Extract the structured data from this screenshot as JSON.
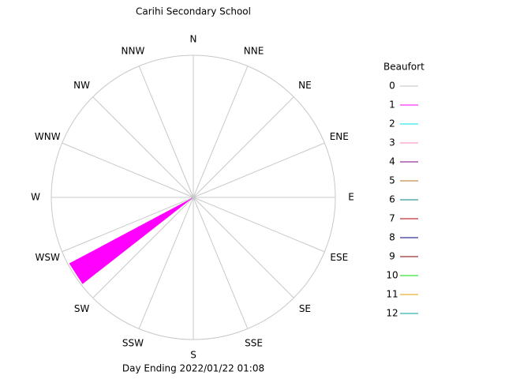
{
  "chart_data": {
    "type": "windrose",
    "title": "Carihi Secondary School",
    "footer": "Day Ending 2022/01/22 01:08",
    "directions": [
      "N",
      "NNE",
      "NE",
      "ENE",
      "E",
      "ESE",
      "SE",
      "SSE",
      "S",
      "SSW",
      "SW",
      "WSW",
      "W",
      "WNW",
      "NW",
      "NNW"
    ],
    "rlim": [
      0,
      1
    ],
    "legend_title": "Beaufort",
    "series": [
      {
        "name": "0",
        "color": "#c0c0c0",
        "directions": [],
        "values": []
      },
      {
        "name": "1",
        "color": "#ff00ff",
        "directions": [
          237
        ],
        "values": [
          0.99
        ]
      },
      {
        "name": "2",
        "color": "#00e0e0",
        "directions": [],
        "values": []
      },
      {
        "name": "3",
        "color": "#ff80c0",
        "directions": [],
        "values": []
      },
      {
        "name": "4",
        "color": "#800080",
        "directions": [],
        "values": []
      },
      {
        "name": "5",
        "color": "#b07020",
        "directions": [],
        "values": []
      },
      {
        "name": "6",
        "color": "#008080",
        "directions": [],
        "values": []
      },
      {
        "name": "7",
        "color": "#b00000",
        "directions": [],
        "values": []
      },
      {
        "name": "8",
        "color": "#000080",
        "directions": [],
        "values": []
      },
      {
        "name": "9",
        "color": "#800000",
        "directions": [],
        "values": []
      },
      {
        "name": "10",
        "color": "#00e000",
        "directions": [],
        "values": []
      },
      {
        "name": "11",
        "color": "#e0a000",
        "directions": [],
        "values": []
      },
      {
        "name": "12",
        "color": "#00a0a0",
        "directions": [],
        "values": []
      }
    ]
  }
}
